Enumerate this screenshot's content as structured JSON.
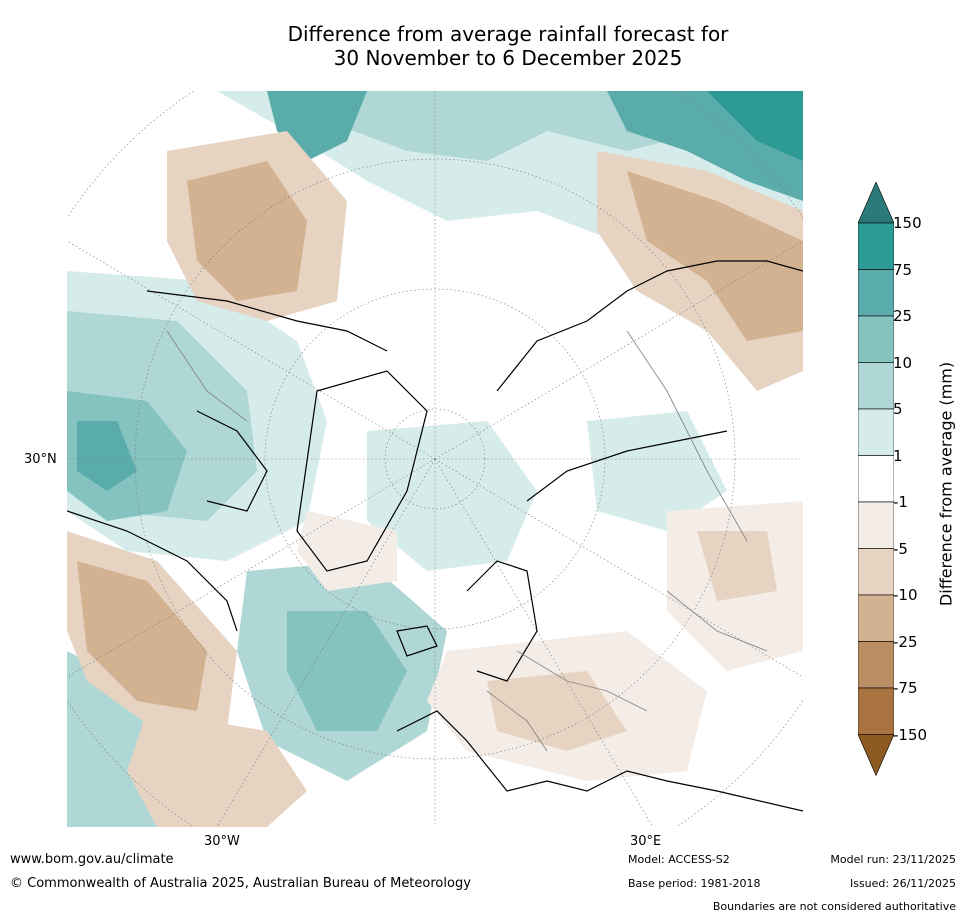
{
  "title_line1": "Difference from average rainfall forecast for",
  "title_line2": "30 November to 6 December 2025",
  "map": {
    "lat_label": "30°N",
    "lon_label_west": "30°W",
    "lon_label_east": "30°E"
  },
  "colorbar": {
    "title": "Difference from average (mm)",
    "ticks": [
      "150",
      "75",
      "25",
      "10",
      "5",
      "1",
      "-1",
      "-5",
      "-10",
      "-25",
      "-75",
      "-150"
    ],
    "colors": [
      "#2a7a7a",
      "#2e9a96",
      "#5aacaa",
      "#85c3c1",
      "#aed7d5",
      "#d6eceb",
      "#ffffff",
      "#f4ece7",
      "#e6d3c2",
      "#d2b291",
      "#bb8d62",
      "#a8733f",
      "#8d5a22"
    ]
  },
  "footer": {
    "url": "www.bom.gov.au/climate",
    "copyright": "© Commonwealth of Australia 2025, Australian Bureau of Meteorology",
    "model": "Model: ACCESS-S2",
    "base_period": "Base period: 1981-2018",
    "model_run": "Model run: 23/11/2025",
    "issued": "Issued: 26/11/2025",
    "boundaries_note": "Boundaries are not considered authoritative"
  }
}
